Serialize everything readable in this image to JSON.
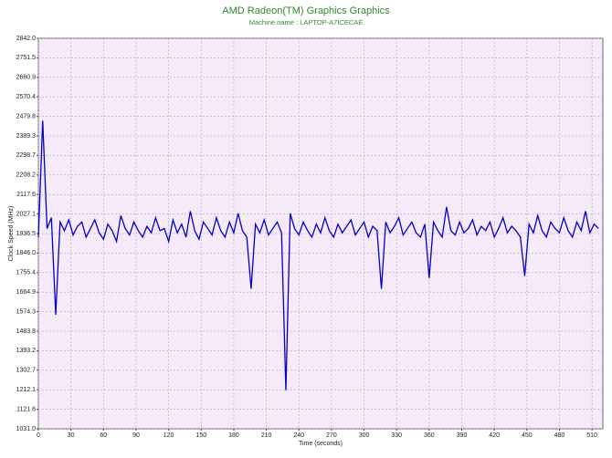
{
  "chart_data": {
    "type": "line",
    "title": "AMD Radeon(TM) Graphics Graphics",
    "subtitle": "Machine name : LAPTOP-A7ICECAE",
    "xlabel": "Time (seconds)",
    "ylabel": "Clock Speed (MHz)",
    "color": "#0000c8",
    "grid": true,
    "xlim": [
      0,
      520
    ],
    "xticks": [
      0,
      30,
      60,
      90,
      120,
      150,
      180,
      210,
      240,
      270,
      300,
      330,
      360,
      390,
      420,
      450,
      480,
      510
    ],
    "ylim": [
      1031,
      2842
    ],
    "yticks": [
      {
        "value": 2842,
        "label": "2842.0"
      },
      2751.5,
      2660.9,
      2570.4,
      2479.8,
      2389.3,
      2298.7,
      2208.2,
      2117.6,
      2027.1,
      1936.5,
      {
        "value": 1846,
        "label": "1846.0"
      },
      1755.4,
      1664.9,
      1574.3,
      1483.8,
      1393.2,
      1302.7,
      1212.1,
      1121.6,
      {
        "value": 1031,
        "label": "1031.0"
      }
    ],
    "x": [
      0,
      4,
      8,
      12,
      16,
      20,
      24,
      28,
      32,
      36,
      40,
      44,
      48,
      52,
      56,
      60,
      64,
      68,
      72,
      76,
      80,
      84,
      88,
      92,
      96,
      100,
      104,
      108,
      112,
      116,
      120,
      124,
      128,
      132,
      136,
      140,
      144,
      148,
      152,
      156,
      160,
      164,
      168,
      172,
      176,
      180,
      184,
      188,
      192,
      196,
      200,
      204,
      208,
      212,
      216,
      220,
      224,
      228,
      232,
      236,
      240,
      244,
      248,
      252,
      256,
      260,
      264,
      268,
      272,
      276,
      280,
      284,
      288,
      292,
      296,
      300,
      304,
      308,
      312,
      316,
      320,
      324,
      328,
      332,
      336,
      340,
      344,
      348,
      352,
      356,
      360,
      364,
      368,
      372,
      376,
      380,
      384,
      388,
      392,
      396,
      400,
      404,
      408,
      412,
      416,
      420,
      424,
      428,
      432,
      436,
      440,
      444,
      448,
      452,
      456,
      460,
      464,
      468,
      472,
      476,
      480,
      484,
      488,
      492,
      496,
      500,
      504,
      508,
      512,
      516
    ],
    "values": [
      1920,
      2460,
      1960,
      2010,
      1560,
      1990,
      1950,
      2000,
      1930,
      1970,
      1990,
      1920,
      1960,
      2000,
      1940,
      1910,
      1980,
      1950,
      1900,
      2020,
      1960,
      1930,
      1990,
      1950,
      1920,
      1970,
      1940,
      2010,
      1950,
      1960,
      1900,
      2000,
      1940,
      1980,
      1920,
      2040,
      1950,
      1910,
      1990,
      1960,
      1930,
      2010,
      1950,
      1920,
      1990,
      1940,
      2030,
      1950,
      1920,
      1680,
      1980,
      1940,
      2000,
      1930,
      1960,
      1990,
      1940,
      1210,
      2030,
      1960,
      1930,
      1990,
      1950,
      1920,
      1980,
      1940,
      2010,
      1950,
      1920,
      1980,
      1940,
      1970,
      2000,
      1930,
      1960,
      1990,
      1920,
      1970,
      1950,
      1680,
      1990,
      1940,
      1970,
      2010,
      1930,
      1960,
      1990,
      1940,
      1920,
      1980,
      1730,
      1990,
      1950,
      1920,
      2060,
      1950,
      1930,
      1990,
      1940,
      1960,
      2000,
      1930,
      1970,
      1950,
      1990,
      1920,
      1960,
      2010,
      1940,
      1970,
      1950,
      1920,
      1740,
      1980,
      1940,
      2020,
      1950,
      1920,
      1990,
      1960,
      1940,
      2010,
      1950,
      1920,
      1990,
      1950,
      2040,
      1940,
      1980,
      1960
    ]
  }
}
